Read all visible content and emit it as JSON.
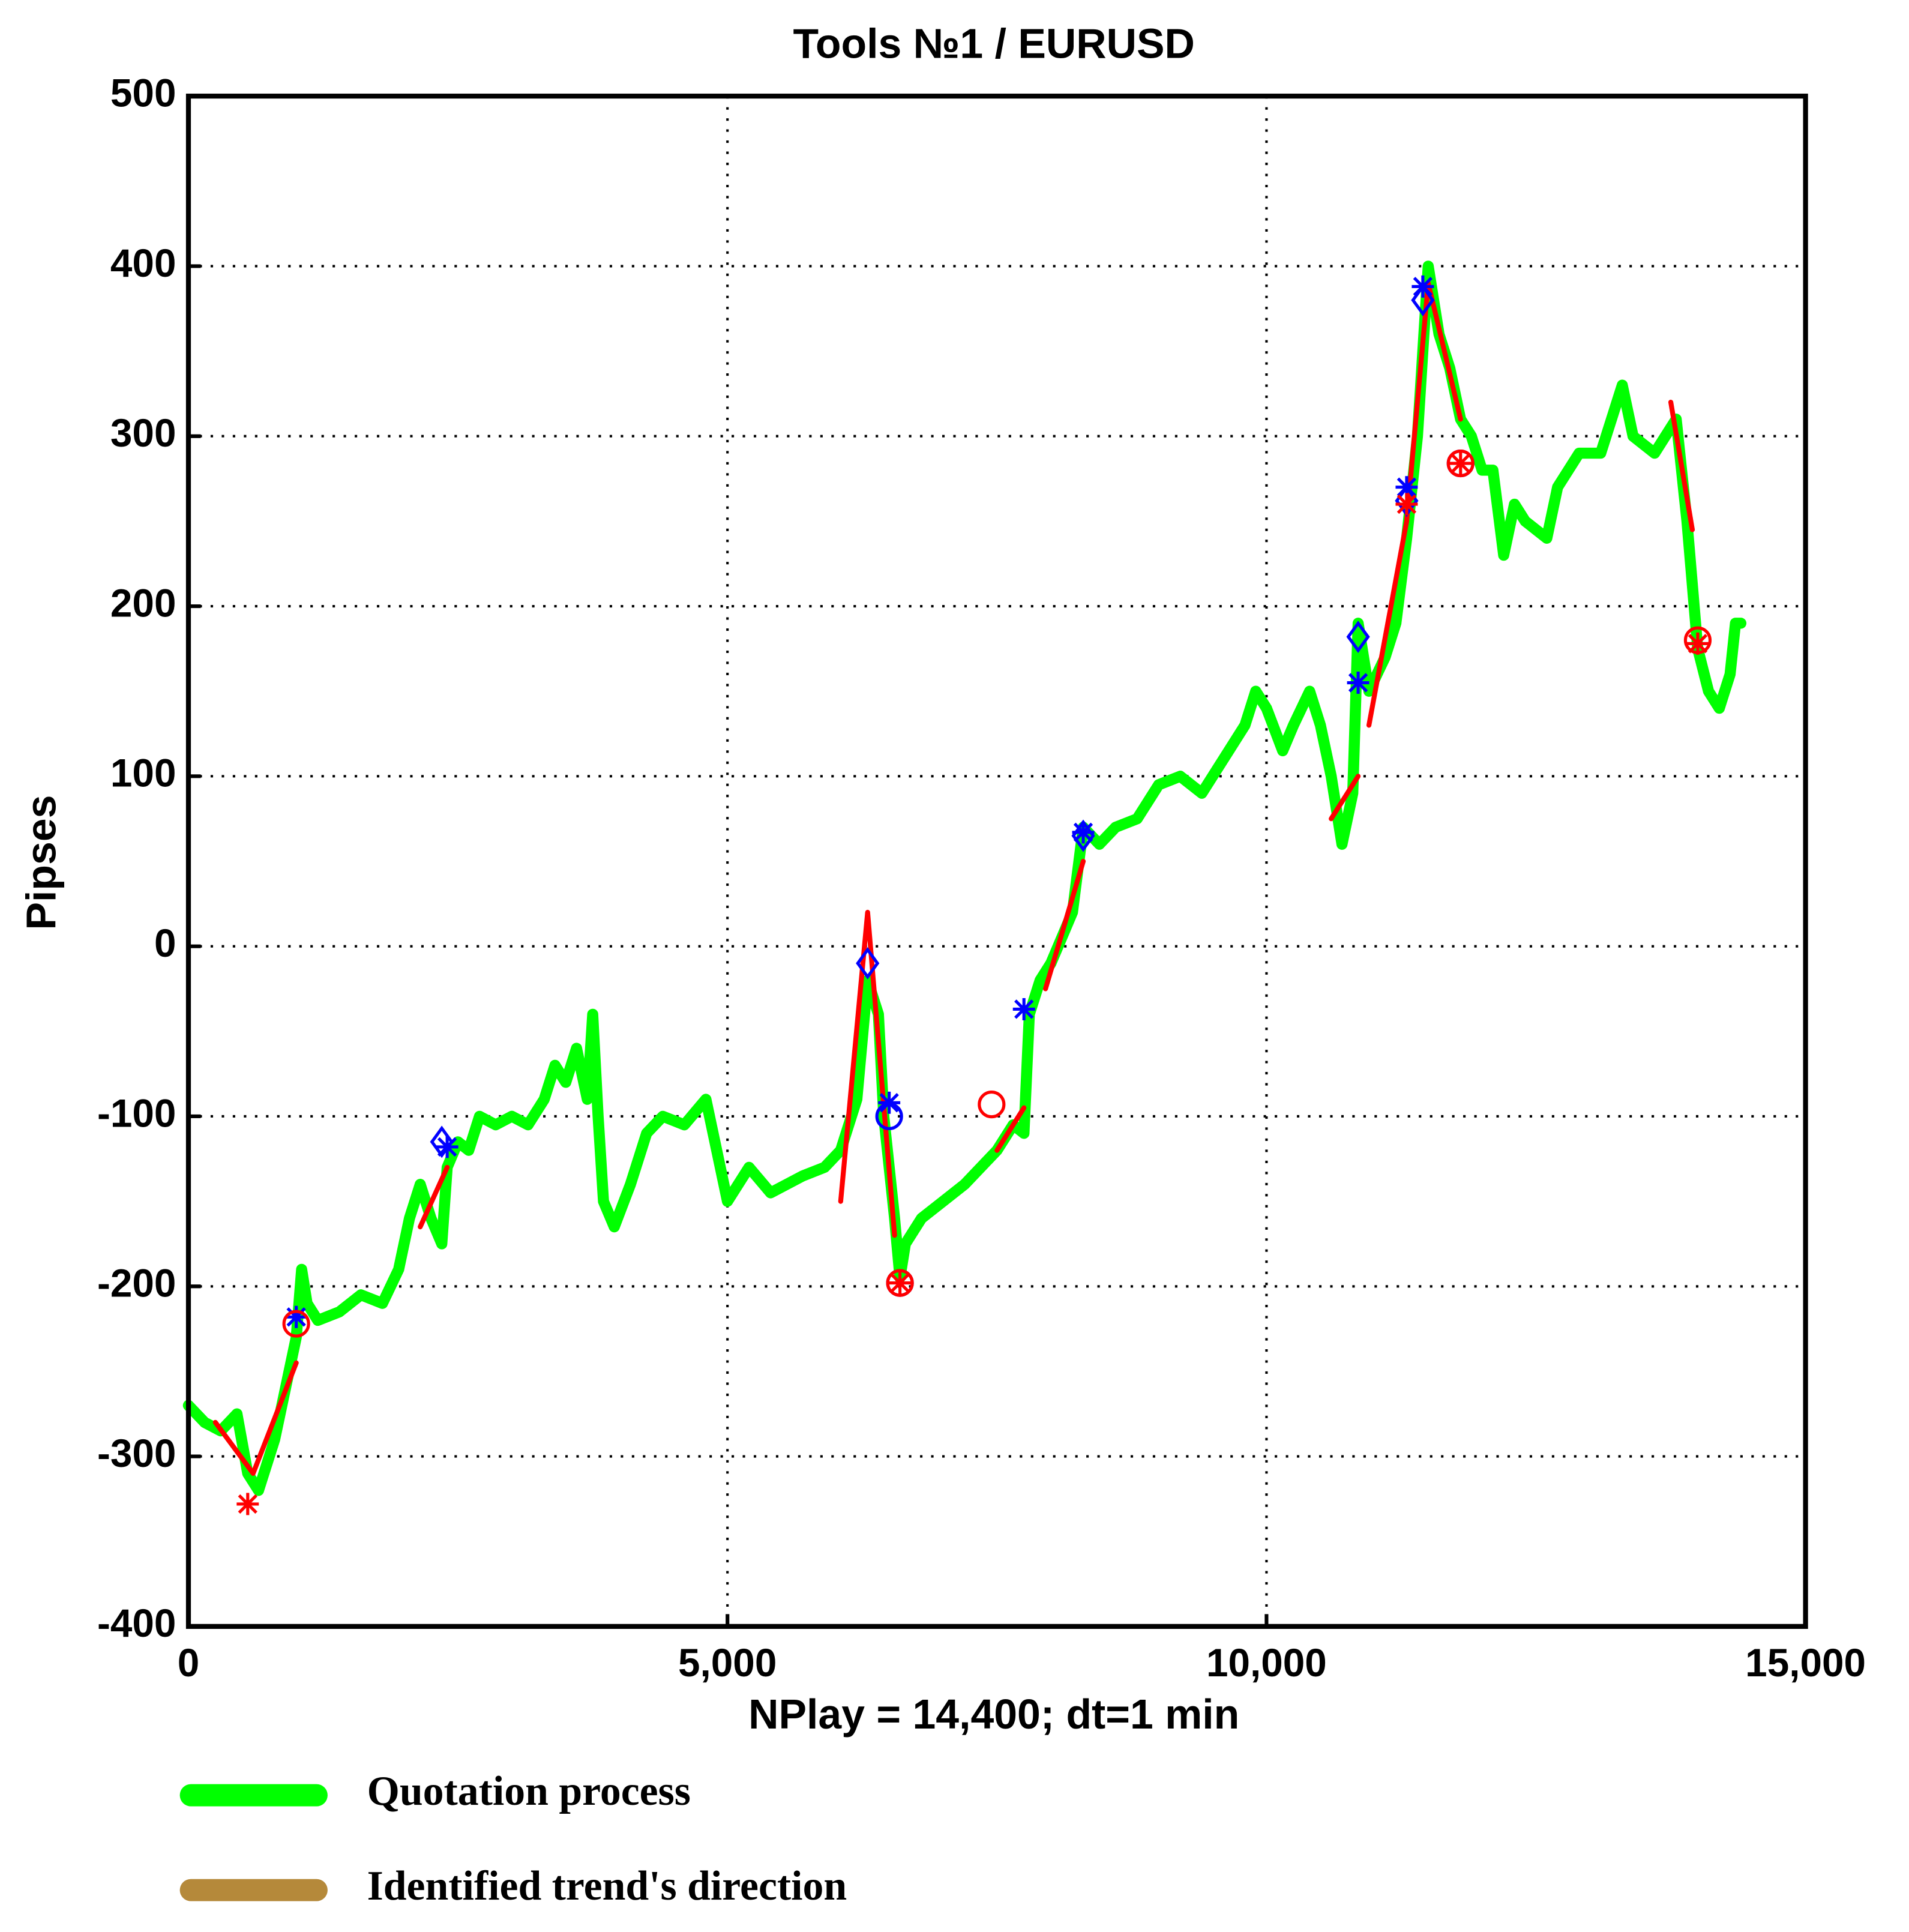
{
  "chart_data": {
    "type": "line",
    "title": "Tools  №1 / EURUSD",
    "xlabel": "NPlay = 14,400;   dt=1 min",
    "ylabel": "Pipses",
    "xlim": [
      0,
      15000
    ],
    "ylim": [
      -400,
      500
    ],
    "xticks": [
      0,
      {
        "value": 5000,
        "label": "5,000"
      },
      {
        "value": 10000,
        "label": "10,000"
      },
      {
        "value": 15000,
        "label": "15,000"
      }
    ],
    "yticks": [
      -400,
      -300,
      -200,
      -100,
      0,
      100,
      200,
      300,
      400,
      500
    ],
    "grid": true,
    "series": [
      {
        "name": "Quotation process",
        "color": "#00ff00",
        "x": [
          0,
          150,
          300,
          450,
          550,
          650,
          800,
          1000,
          1050,
          1100,
          1200,
          1400,
          1600,
          1800,
          1950,
          2050,
          2150,
          2250,
          2350,
          2400,
          2500,
          2600,
          2700,
          2850,
          3000,
          3150,
          3300,
          3400,
          3500,
          3600,
          3700,
          3750,
          3800,
          3850,
          3950,
          4100,
          4250,
          4400,
          4600,
          4800,
          4900,
          5000,
          5200,
          5400,
          5700,
          5900,
          6050,
          6200,
          6300,
          6400,
          6450,
          6550,
          6600,
          6650,
          6800,
          7000,
          7200,
          7500,
          7650,
          7750,
          7800,
          7900,
          8000,
          8200,
          8300,
          8450,
          8600,
          8800,
          9000,
          9200,
          9400,
          9600,
          9800,
          9900,
          10000,
          10150,
          10250,
          10400,
          10500,
          10600,
          10700,
          10800,
          10850,
          10950,
          11100,
          11200,
          11300,
          11400,
          11500,
          11600,
          11700,
          11800,
          11900,
          12000,
          12100,
          12200,
          12300,
          12400,
          12600,
          12700,
          12900,
          13100,
          13300,
          13400,
          13600,
          13700,
          13800,
          13900,
          14000,
          14100,
          14200,
          14300,
          14350,
          14400
        ],
        "values": [
          -270,
          -280,
          -285,
          -275,
          -310,
          -320,
          -290,
          -230,
          -190,
          -210,
          -220,
          -215,
          -205,
          -210,
          -190,
          -160,
          -140,
          -160,
          -175,
          -130,
          -115,
          -120,
          -100,
          -105,
          -100,
          -105,
          -90,
          -70,
          -80,
          -60,
          -90,
          -40,
          -100,
          -150,
          -165,
          -140,
          -110,
          -100,
          -105,
          -90,
          -120,
          -150,
          -130,
          -145,
          -135,
          -130,
          -120,
          -90,
          -20,
          -40,
          -100,
          -160,
          -195,
          -175,
          -160,
          -150,
          -140,
          -120,
          -105,
          -110,
          -40,
          -20,
          -10,
          20,
          70,
          60,
          70,
          75,
          95,
          100,
          90,
          110,
          130,
          150,
          140,
          115,
          130,
          150,
          130,
          100,
          60,
          90,
          190,
          150,
          170,
          190,
          240,
          300,
          400,
          360,
          340,
          310,
          300,
          280,
          280,
          230,
          260,
          250,
          240,
          270,
          290,
          290,
          330,
          300,
          290,
          300,
          310,
          250,
          175,
          150,
          140,
          160,
          190,
          190
        ]
      },
      {
        "name": "Identified trend's direction",
        "color": "#ff0000",
        "legend_color": "#b5893a",
        "x": [
          250,
          600,
          1000,
          null,
          2150,
          2400,
          null,
          6050,
          6300,
          6550,
          null,
          7500,
          7750,
          null,
          7950,
          8300,
          null,
          10600,
          10850,
          null,
          10950,
          11300,
          11500,
          11800,
          null,
          13750,
          13950
        ],
        "values": [
          -280,
          -310,
          -245,
          null,
          -165,
          -130,
          null,
          -150,
          20,
          -170,
          null,
          -120,
          -95,
          null,
          -25,
          50,
          null,
          75,
          100,
          null,
          130,
          250,
          390,
          310,
          null,
          320,
          245
        ]
      }
    ],
    "markers": {
      "blue_stars": {
        "color": "#0000ff",
        "x": [
          1000,
          2400,
          6500,
          7750,
          8300,
          10850,
          11300,
          11450
        ],
        "values": [
          -218,
          -118,
          -92,
          -37,
          67,
          155,
          270,
          388
        ]
      },
      "blue_circles": {
        "color": "#0000ff",
        "x": [
          6500,
          6600,
          11800
        ],
        "values": [
          -100,
          -198,
          284
        ]
      },
      "blue_diamonds": {
        "color": "#0000ff",
        "x": [
          2350,
          6300,
          8300,
          10850,
          11300,
          11450
        ],
        "values": [
          -115,
          -10,
          65,
          182,
          262,
          380
        ]
      },
      "red_circles": {
        "color": "#ff0000",
        "x": [
          1000,
          7450,
          6600,
          11800,
          14000
        ],
        "values": [
          -222,
          -93,
          -198,
          284,
          180
        ]
      },
      "red_stars": {
        "color": "#ff0000",
        "x": [
          550,
          6600,
          11800,
          14000,
          11300
        ],
        "values": [
          -328,
          -198,
          284,
          178,
          260
        ]
      }
    }
  }
}
